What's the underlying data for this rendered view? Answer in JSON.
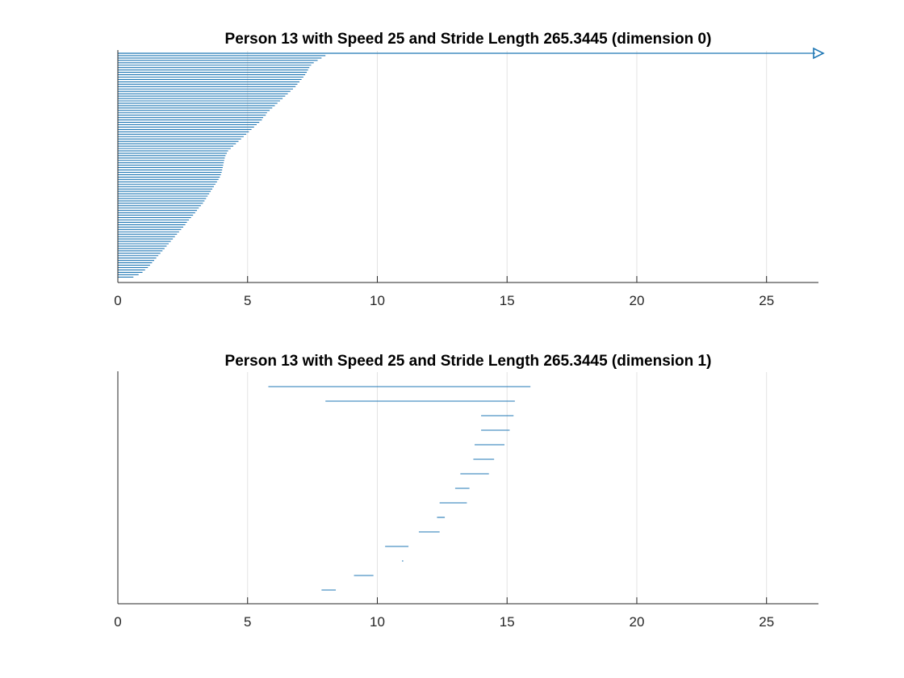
{
  "colors": {
    "bar": "#1f77b4",
    "axis": "#262626",
    "grid": "#e3e3e3",
    "background": "#ffffff"
  },
  "chart_data": [
    {
      "type": "barcode",
      "title": "Person 13 with Speed 25 and Stride Length 265.3445 (dimension 0)",
      "xlabel": "",
      "ylabel": "",
      "xlim": [
        0,
        27
      ],
      "xticks": [
        "0",
        "5",
        "10",
        "15",
        "20",
        "25"
      ],
      "xtick_values": [
        0,
        5,
        10,
        15,
        20,
        25
      ],
      "grid": true,
      "infinite_bar": {
        "start": 0,
        "arrow_at": 27,
        "arrow_icon": "triangle-right-icon"
      },
      "bars": [
        [
          0,
          8.0
        ],
        [
          0,
          7.85
        ],
        [
          0,
          7.7
        ],
        [
          0,
          7.55
        ],
        [
          0,
          7.45
        ],
        [
          0,
          7.38
        ],
        [
          0,
          7.33
        ],
        [
          0,
          7.28
        ],
        [
          0,
          7.22
        ],
        [
          0,
          7.15
        ],
        [
          0,
          7.08
        ],
        [
          0,
          7.0
        ],
        [
          0,
          6.92
        ],
        [
          0,
          6.85
        ],
        [
          0,
          6.75
        ],
        [
          0,
          6.65
        ],
        [
          0,
          6.55
        ],
        [
          0,
          6.45
        ],
        [
          0,
          6.35
        ],
        [
          0,
          6.25
        ],
        [
          0,
          6.15
        ],
        [
          0,
          6.05
        ],
        [
          0,
          5.95
        ],
        [
          0,
          5.85
        ],
        [
          0,
          5.75
        ],
        [
          0,
          5.7
        ],
        [
          0,
          5.6
        ],
        [
          0,
          5.55
        ],
        [
          0,
          5.45
        ],
        [
          0,
          5.35
        ],
        [
          0,
          5.25
        ],
        [
          0,
          5.15
        ],
        [
          0,
          5.05
        ],
        [
          0,
          4.95
        ],
        [
          0,
          4.85
        ],
        [
          0,
          4.75
        ],
        [
          0,
          4.65
        ],
        [
          0,
          4.55
        ],
        [
          0,
          4.45
        ],
        [
          0,
          4.35
        ],
        [
          0,
          4.25
        ],
        [
          0,
          4.2
        ],
        [
          0,
          4.15
        ],
        [
          0,
          4.12
        ],
        [
          0,
          4.1
        ],
        [
          0,
          4.08
        ],
        [
          0,
          4.06
        ],
        [
          0,
          4.04
        ],
        [
          0,
          4.02
        ],
        [
          0,
          4.0
        ],
        [
          0,
          3.97
        ],
        [
          0,
          3.93
        ],
        [
          0,
          3.88
        ],
        [
          0,
          3.82
        ],
        [
          0,
          3.76
        ],
        [
          0,
          3.7
        ],
        [
          0,
          3.64
        ],
        [
          0,
          3.58
        ],
        [
          0,
          3.52
        ],
        [
          0,
          3.46
        ],
        [
          0,
          3.4
        ],
        [
          0,
          3.34
        ],
        [
          0,
          3.28
        ],
        [
          0,
          3.2
        ],
        [
          0,
          3.12
        ],
        [
          0,
          3.05
        ],
        [
          0,
          2.98
        ],
        [
          0,
          2.9
        ],
        [
          0,
          2.82
        ],
        [
          0,
          2.74
        ],
        [
          0,
          2.66
        ],
        [
          0,
          2.6
        ],
        [
          0,
          2.52
        ],
        [
          0,
          2.44
        ],
        [
          0,
          2.36
        ],
        [
          0,
          2.28
        ],
        [
          0,
          2.2
        ],
        [
          0,
          2.12
        ],
        [
          0,
          2.04
        ],
        [
          0,
          1.96
        ],
        [
          0,
          1.88
        ],
        [
          0,
          1.8
        ],
        [
          0,
          1.72
        ],
        [
          0,
          1.64
        ],
        [
          0,
          1.56
        ],
        [
          0,
          1.48
        ],
        [
          0,
          1.4
        ],
        [
          0,
          1.32
        ],
        [
          0,
          1.24
        ],
        [
          0,
          1.16
        ],
        [
          0,
          1.05
        ],
        [
          0,
          0.95
        ],
        [
          0,
          0.8
        ],
        [
          0,
          0.6
        ]
      ]
    },
    {
      "type": "barcode",
      "title": "Person 13 with Speed 25 and Stride Length 265.3445 (dimension 1)",
      "xlabel": "",
      "ylabel": "",
      "xlim": [
        0,
        27
      ],
      "xticks": [
        "0",
        "5",
        "10",
        "15",
        "20",
        "25"
      ],
      "xtick_values": [
        0,
        5,
        10,
        15,
        20,
        25
      ],
      "grid": true,
      "bars": [
        [
          5.8,
          15.9
        ],
        [
          8.0,
          15.3
        ],
        [
          14.0,
          15.25
        ],
        [
          14.0,
          15.1
        ],
        [
          13.75,
          14.9
        ],
        [
          13.7,
          14.5
        ],
        [
          13.2,
          14.3
        ],
        [
          13.0,
          13.55
        ],
        [
          12.4,
          13.45
        ],
        [
          12.3,
          12.6
        ],
        [
          11.6,
          12.4
        ],
        [
          10.3,
          11.2
        ],
        [
          10.95,
          11.0
        ],
        [
          9.1,
          9.85
        ],
        [
          7.85,
          8.4
        ]
      ]
    }
  ]
}
